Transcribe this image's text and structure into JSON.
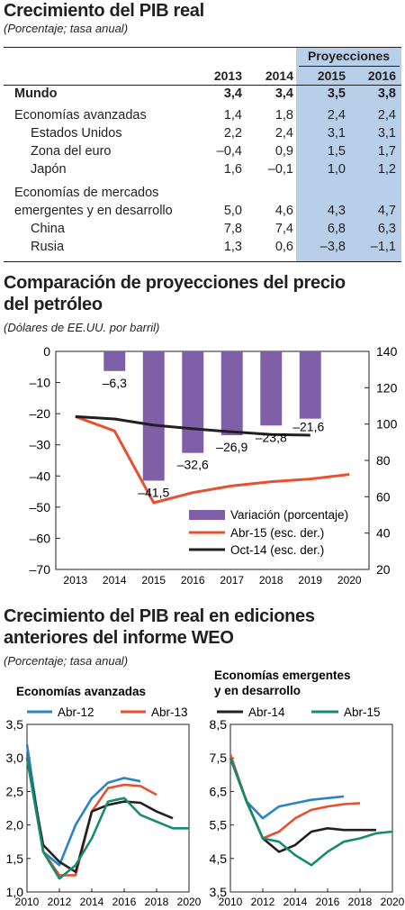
{
  "table": {
    "title": "Crecimiento del PIB real",
    "subtitle": "(Porcentaje; tasa anual)",
    "projections_label": "Proyecciones",
    "years": [
      "2013",
      "2014",
      "2015",
      "2016"
    ],
    "rows": [
      {
        "label": "Mundo",
        "indent": 0,
        "bold": true,
        "values": [
          "3,4",
          "3,4",
          "3,5",
          "3,8"
        ]
      },
      {
        "label": "Economías avanzadas",
        "indent": 0,
        "bold": false,
        "values": [
          "1,4",
          "1,8",
          "2,4",
          "2,4"
        ]
      },
      {
        "label": "Estados Unidos",
        "indent": 1,
        "bold": false,
        "values": [
          "2,2",
          "2,4",
          "3,1",
          "3,1"
        ]
      },
      {
        "label": "Zona del euro",
        "indent": 1,
        "bold": false,
        "values": [
          "–0,4",
          "0,9",
          "1,5",
          "1,7"
        ]
      },
      {
        "label": "Japón",
        "indent": 1,
        "bold": false,
        "values": [
          "1,6",
          "–0,1",
          "1,0",
          "1,2"
        ]
      },
      {
        "label": "Economías de mercados",
        "indent": 0,
        "bold": false,
        "values": [
          "",
          "",
          "",
          ""
        ]
      },
      {
        "label": "emergentes y en desarrollo",
        "indent": 0,
        "bold": false,
        "values": [
          "5,0",
          "4,6",
          "4,3",
          "4,7"
        ]
      },
      {
        "label": "China",
        "indent": 1,
        "bold": false,
        "values": [
          "7,8",
          "7,4",
          "6,8",
          "6,3"
        ]
      },
      {
        "label": "Rusia",
        "indent": 1,
        "bold": false,
        "values": [
          "1,3",
          "0,6",
          "–3,8",
          "–1,1"
        ]
      }
    ]
  },
  "oil": {
    "title_line1": "Comparación de proyecciones del precio",
    "title_line2": "del petróleo",
    "subtitle": "(Dólares de EE.UU. por barril)"
  },
  "weo": {
    "title_line1": "Crecimiento del PIB real en ediciones",
    "title_line2": "anteriores del informe WEO",
    "subtitle": "(Porcentaje; tasa anual)"
  },
  "chart_data": [
    {
      "type": "bar",
      "categories": [
        "2013",
        "2014",
        "2015",
        "2016",
        "2017",
        "2018",
        "2019",
        "2020"
      ],
      "ylim_left": [
        -70,
        0
      ],
      "yticks_left": [
        "0",
        "–10",
        "–20",
        "–30",
        "–40",
        "–50",
        "–60",
        "–70"
      ],
      "ylim_right": [
        20,
        140
      ],
      "yticks_right": [
        "140",
        "120",
        "100",
        "80",
        "60",
        "40",
        "20"
      ],
      "bars": {
        "name": "Variación (porcentaje)",
        "color": "#7f5fa8",
        "values": [
          null,
          -6.3,
          -41.5,
          -32.6,
          -26.9,
          -23.8,
          -21.6,
          null
        ],
        "labels": [
          "",
          "–6,3",
          "–41,5",
          "–32,6",
          "–26,9",
          "–23,8",
          "–21,6",
          ""
        ]
      },
      "lines": [
        {
          "name": "Abr-15 (esc. der.)",
          "color": "#e8502f",
          "axis": "right",
          "x": [
            2013,
            2014,
            2015,
            2016,
            2017,
            2018,
            2019,
            2020
          ],
          "y": [
            104.1,
            96.2,
            56.7,
            62.3,
            66.0,
            68.3,
            69.8,
            72.3
          ]
        },
        {
          "name": "Oct-14 (esc. der.)",
          "color": "#231f20",
          "axis": "right",
          "x": [
            2013,
            2014,
            2015,
            2016,
            2017,
            2018,
            2019
          ],
          "y": [
            104.1,
            102.8,
            99.4,
            97.4,
            95.7,
            94.3,
            93.9
          ]
        }
      ]
    },
    {
      "type": "line",
      "title": "Economías avanzadas",
      "ylim": [
        1.0,
        3.5
      ],
      "yticks": [
        "1,0",
        "1,5",
        "2,0",
        "2,5",
        "3,0",
        "3,5"
      ],
      "xticks": [
        "2010",
        "2012",
        "2014",
        "2016",
        "2018",
        "2020"
      ],
      "xlim": [
        2010,
        2020
      ],
      "series": [
        {
          "name": "Abr-12",
          "color": "#2a83c6",
          "x": [
            2010,
            2011,
            2012,
            2013,
            2014,
            2015,
            2016,
            2017
          ],
          "y": [
            3.2,
            1.6,
            1.4,
            2.0,
            2.4,
            2.63,
            2.7,
            2.65
          ]
        },
        {
          "name": "Abr-13",
          "color": "#e8502f",
          "x": [
            2010,
            2011,
            2012,
            2013,
            2014,
            2015,
            2016,
            2017,
            2018
          ],
          "y": [
            3.0,
            1.6,
            1.25,
            1.25,
            2.2,
            2.55,
            2.6,
            2.58,
            2.45
          ]
        },
        {
          "name": "Abr-14",
          "color": "#231f20",
          "x": [
            2010,
            2011,
            2012,
            2013,
            2014,
            2015,
            2016,
            2017,
            2018,
            2019
          ],
          "y": [
            3.0,
            1.7,
            1.45,
            1.3,
            2.2,
            2.3,
            2.35,
            2.33,
            2.2,
            2.1
          ]
        },
        {
          "name": "Abr-15",
          "color": "#158c6e",
          "x": [
            2010,
            2011,
            2012,
            2013,
            2014,
            2015,
            2016,
            2017,
            2018,
            2019,
            2020
          ],
          "y": [
            3.0,
            1.6,
            1.2,
            1.4,
            1.8,
            2.35,
            2.4,
            2.15,
            2.05,
            1.95,
            1.95
          ]
        }
      ]
    },
    {
      "type": "line",
      "title": "Economías emergentes y en desarrollo",
      "title_line1": "Economías emergentes",
      "title_line2": "y en desarrollo",
      "ylim": [
        3.5,
        8.5
      ],
      "yticks": [
        "3,5",
        "4,5",
        "5,5",
        "6,5",
        "7,5",
        "8,5"
      ],
      "xticks": [
        "2010",
        "2012",
        "2014",
        "2016",
        "2018",
        "2020"
      ],
      "xlim": [
        2010,
        2020
      ],
      "series": [
        {
          "name": "Abr-12",
          "color": "#2a83c6",
          "x": [
            2010,
            2011,
            2012,
            2013,
            2014,
            2015,
            2016,
            2017
          ],
          "y": [
            7.5,
            6.2,
            5.7,
            6.05,
            6.15,
            6.25,
            6.3,
            6.35
          ]
        },
        {
          "name": "Abr-13",
          "color": "#e8502f",
          "x": [
            2010,
            2011,
            2012,
            2013,
            2014,
            2015,
            2016,
            2017,
            2018
          ],
          "y": [
            7.6,
            6.2,
            5.1,
            5.3,
            5.7,
            5.95,
            6.05,
            6.12,
            6.15
          ]
        },
        {
          "name": "Abr-14",
          "color": "#231f20",
          "x": [
            2010,
            2011,
            2012,
            2013,
            2014,
            2015,
            2016,
            2017,
            2018,
            2019
          ],
          "y": [
            7.5,
            6.2,
            5.1,
            4.7,
            4.9,
            5.3,
            5.4,
            5.35,
            5.35,
            5.35
          ]
        },
        {
          "name": "Abr-15",
          "color": "#158c6e",
          "x": [
            2010,
            2011,
            2012,
            2013,
            2014,
            2015,
            2016,
            2017,
            2018,
            2019,
            2020
          ],
          "y": [
            7.5,
            6.2,
            5.1,
            5.0,
            4.6,
            4.3,
            4.7,
            5.0,
            5.1,
            5.25,
            5.3
          ]
        }
      ]
    }
  ]
}
